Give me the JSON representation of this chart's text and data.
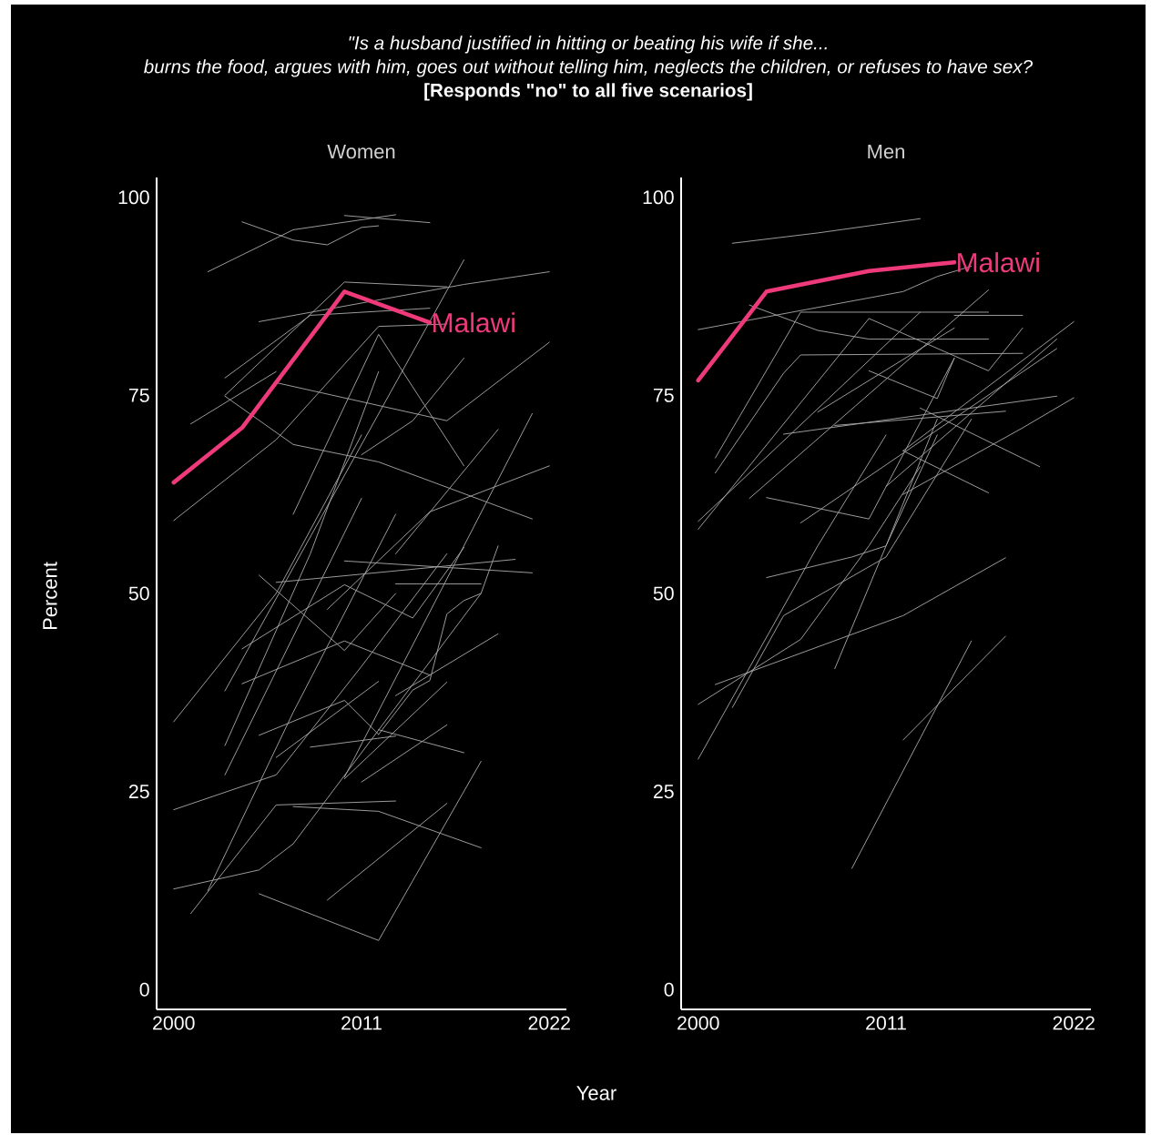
{
  "chart_data": [
    {
      "type": "line",
      "title": "Women",
      "xlabel": "Year",
      "ylabel": "Percent",
      "annotations": [
        "\"Is a husband justified in hitting or beating his wife if she...",
        "burns the food, argues with him, goes out without telling him, neglects the children, or refuses to have sex?",
        "[Responds \"no\" to all five scenarios]"
      ],
      "xlim": [
        1999,
        2023
      ],
      "ylim": [
        -2.5,
        102.5
      ],
      "xticks": [
        2000,
        2011,
        2022
      ],
      "yticks": [
        0,
        25,
        50,
        75,
        100
      ],
      "marker": "none",
      "line_style": "solid",
      "series": [
        {
          "color": "#a6a6a6",
          "x": [
            2002,
            2007,
            2013
          ],
          "values": [
            90.6,
            95.9,
            97.8
          ]
        },
        {
          "color": "#a6a6a6",
          "x": [
            2004,
            2007,
            2009,
            2011,
            2012
          ],
          "values": [
            96.9,
            94.6,
            94.0,
            96.2,
            96.4
          ]
        },
        {
          "color": "#a6a6a6",
          "x": [
            2010,
            2015
          ],
          "values": [
            97.7,
            96.8
          ]
        },
        {
          "color": "#a6a6a6",
          "x": [
            2003,
            2010,
            2016
          ],
          "values": [
            75,
            89.3,
            88.7
          ]
        },
        {
          "color": "#a6a6a6",
          "x": [
            2005,
            2017,
            2022
          ],
          "values": [
            84.3,
            89,
            90.6
          ]
        },
        {
          "color": "#a6a6a6",
          "x": [
            2003,
            2008,
            2015
          ],
          "values": [
            77.2,
            85.1,
            86
          ]
        },
        {
          "color": "#a6a6a6",
          "x": [
            2003,
            2007,
            2012,
            2021
          ],
          "values": [
            74.9,
            68.8,
            66.6,
            59.4
          ]
        },
        {
          "color": "#a6a6a6",
          "x": [
            2006,
            2016,
            2022
          ],
          "values": [
            76.6,
            71.8,
            81.7
          ]
        },
        {
          "color": "#a6a6a6",
          "x": [
            2000,
            2006,
            2012,
            2016
          ],
          "values": [
            59.2,
            69.4,
            83.7,
            84
          ]
        },
        {
          "color": "#a6a6a6",
          "x": [
            2001,
            2006
          ],
          "values": [
            71.4,
            78
          ]
        },
        {
          "color": "#a6a6a6",
          "x": [
            2007,
            2012,
            2017
          ],
          "values": [
            60,
            82.7,
            66.1
          ]
        },
        {
          "color": "#a6a6a6",
          "x": [
            2011,
            2014,
            2017
          ],
          "values": [
            67.5,
            71.8,
            79.7
          ]
        },
        {
          "color": "#a6a6a6",
          "x": [
            2003,
            2017
          ],
          "values": [
            37.7,
            92.1
          ]
        },
        {
          "color": "#a6a6a6",
          "x": [
            2009,
            2015,
            2022
          ],
          "values": [
            48,
            60.3,
            66.1
          ]
        },
        {
          "color": "#a6a6a6",
          "x": [
            2010,
            2021
          ],
          "values": [
            26.8,
            72.7
          ]
        },
        {
          "color": "#a6a6a6",
          "x": [
            2012,
            2014,
            2015,
            2016,
            2017,
            2018,
            2019
          ],
          "values": [
            32.2,
            37.8,
            39,
            47.4,
            49.1,
            50,
            56
          ]
        },
        {
          "color": "#a6a6a6",
          "x": [
            2013,
            2019
          ],
          "values": [
            55,
            70.7
          ]
        },
        {
          "color": "#a6a6a6",
          "x": [
            2000,
            2006,
            2011,
            2016
          ],
          "values": [
            22.7,
            27.1,
            40.8,
            55
          ]
        },
        {
          "color": "#a6a6a6",
          "x": [
            2000,
            2005,
            2007,
            2018
          ],
          "values": [
            12.7,
            15.1,
            18.4,
            50
          ]
        },
        {
          "color": "#a6a6a6",
          "x": [
            2001,
            2006,
            2013
          ],
          "values": [
            9.6,
            23.3,
            23.8
          ]
        },
        {
          "color": "#a6a6a6",
          "x": [
            2007,
            2012,
            2018
          ],
          "values": [
            23.1,
            22.5,
            17.9
          ]
        },
        {
          "color": "#a6a6a6",
          "x": [
            2005,
            2012,
            2018
          ],
          "values": [
            12.1,
            6.2,
            28.8
          ]
        },
        {
          "color": "#a6a6a6",
          "x": [
            2009,
            2016
          ],
          "values": [
            11.3,
            23.5
          ]
        },
        {
          "color": "#a6a6a6",
          "x": [
            2002,
            2007,
            2013
          ],
          "values": [
            12.5,
            35,
            60
          ]
        },
        {
          "color": "#a6a6a6",
          "x": [
            2010,
            2016
          ],
          "values": [
            26.6,
            38.8
          ]
        },
        {
          "color": "#a6a6a6",
          "x": [
            2011,
            2016
          ],
          "values": [
            26.2,
            33.4
          ]
        },
        {
          "color": "#a6a6a6",
          "x": [
            2008,
            2013
          ],
          "values": [
            30.6,
            32
          ]
        },
        {
          "color": "#a6a6a6",
          "x": [
            2012,
            2017
          ],
          "values": [
            32.8,
            29.9
          ]
        },
        {
          "color": "#a6a6a6",
          "x": [
            2005,
            2010,
            2012
          ],
          "values": [
            32.1,
            36.5,
            32.2
          ]
        },
        {
          "color": "#a6a6a6",
          "x": [
            2004,
            2010,
            2015
          ],
          "values": [
            38.6,
            44,
            39.7
          ]
        },
        {
          "color": "#a6a6a6",
          "x": [
            2005,
            2010,
            2013
          ],
          "values": [
            52.3,
            42.8,
            50
          ]
        },
        {
          "color": "#a6a6a6",
          "x": [
            2004,
            2010,
            2014,
            2017
          ],
          "values": [
            43,
            51.1,
            46.9,
            55.8
          ]
        },
        {
          "color": "#a6a6a6",
          "x": [
            2006,
            2020
          ],
          "values": [
            51.4,
            54.3
          ]
        },
        {
          "color": "#a6a6a6",
          "x": [
            2010,
            2021
          ],
          "values": [
            54.1,
            52.6
          ]
        },
        {
          "color": "#a6a6a6",
          "x": [
            2013,
            2018
          ],
          "values": [
            51.2,
            51.2
          ]
        },
        {
          "color": "#a6a6a6",
          "x": [
            2013,
            2019
          ],
          "values": [
            37.1,
            44.9
          ]
        },
        {
          "color": "#a6a6a6",
          "x": [
            2000,
            2006,
            2011
          ],
          "values": [
            33.8,
            50,
            70
          ]
        },
        {
          "color": "#a6a6a6",
          "x": [
            2003,
            2008,
            2012
          ],
          "values": [
            30.8,
            55,
            78
          ]
        },
        {
          "color": "#a6a6a6",
          "x": [
            2003,
            2011
          ],
          "values": [
            27.1,
            62
          ]
        },
        {
          "color": "#a6a6a6",
          "x": [
            2006,
            2012
          ],
          "values": [
            29.3,
            38.9
          ]
        },
        {
          "name": "Malawi",
          "color": "#ee3a7a",
          "x": [
            2000,
            2004,
            2010,
            2015
          ],
          "values": [
            64,
            70.9,
            88.1,
            84.2
          ]
        }
      ]
    },
    {
      "type": "line",
      "title": "Men",
      "xlim": [
        1999,
        2023
      ],
      "ylim": [
        -2.5,
        102.5
      ],
      "xticks": [
        2000,
        2011,
        2022
      ],
      "yticks": [
        0,
        25,
        50,
        75,
        100
      ],
      "marker": "none",
      "line_style": "solid",
      "series": [
        {
          "color": "#a6a6a6",
          "x": [
            2002,
            2007,
            2013
          ],
          "values": [
            94.2,
            95.5,
            97.3
          ]
        },
        {
          "color": "#a6a6a6",
          "x": [
            2000,
            2012,
            2014,
            2016
          ],
          "values": [
            83.3,
            88.1,
            90.0,
            91.3
          ]
        },
        {
          "color": "#a6a6a6",
          "x": [
            2003,
            2007,
            2010,
            2017
          ],
          "values": [
            86.4,
            83.2,
            82.1,
            82.1
          ]
        },
        {
          "color": "#a6a6a6",
          "x": [
            2015,
            2019
          ],
          "values": [
            85.1,
            85.1
          ]
        },
        {
          "color": "#a6a6a6",
          "x": [
            2001,
            2006,
            2017
          ],
          "values": [
            67.1,
            85.5,
            85.5
          ]
        },
        {
          "color": "#a6a6a6",
          "x": [
            2000,
            2010,
            2017,
            2019
          ],
          "values": [
            58.1,
            84.7,
            78.1,
            83.5
          ]
        },
        {
          "color": "#a6a6a6",
          "x": [
            2001,
            2005,
            2006,
            2019
          ],
          "values": [
            65.2,
            77.8,
            80.1,
            80.3
          ]
        },
        {
          "color": "#a6a6a6",
          "x": [
            2000,
            2013
          ],
          "values": [
            59.1,
            85.5
          ]
        },
        {
          "color": "#a6a6a6",
          "x": [
            2003,
            2017
          ],
          "values": [
            62,
            88.3
          ]
        },
        {
          "color": "#a6a6a6",
          "x": [
            2004,
            2010,
            2015
          ],
          "values": [
            62.1,
            59.4,
            79.7
          ]
        },
        {
          "color": "#a6a6a6",
          "x": [
            2007,
            2015
          ],
          "values": [
            72.9,
            83.5
          ]
        },
        {
          "color": "#a6a6a6",
          "x": [
            2005,
            2021
          ],
          "values": [
            70.1,
            74.9
          ]
        },
        {
          "color": "#a6a6a6",
          "x": [
            2008,
            2018
          ],
          "values": [
            71.2,
            73
          ]
        },
        {
          "color": "#a6a6a6",
          "x": [
            2012,
            2022
          ],
          "values": [
            68,
            84.3
          ]
        },
        {
          "color": "#a6a6a6",
          "x": [
            2010,
            2014,
            2015
          ],
          "values": [
            78.1,
            74.6,
            79.7
          ]
        },
        {
          "color": "#a6a6a6",
          "x": [
            2012,
            2017
          ],
          "values": [
            68,
            62.7
          ]
        },
        {
          "color": "#a6a6a6",
          "x": [
            2013,
            2020
          ],
          "values": [
            73.4,
            66
          ]
        },
        {
          "color": "#a6a6a6",
          "x": [
            2012,
            2019,
            2022
          ],
          "values": [
            62.5,
            70.9,
            74.7
          ]
        },
        {
          "color": "#a6a6a6",
          "x": [
            2006,
            2021
          ],
          "values": [
            58.9,
            80.9
          ]
        },
        {
          "color": "#a6a6a6",
          "x": [
            2011,
            2021
          ],
          "values": [
            63.5,
            82.1
          ]
        },
        {
          "color": "#a6a6a6",
          "x": [
            2004,
            2009,
            2011,
            2014
          ],
          "values": [
            52,
            54.6,
            56,
            72
          ]
        },
        {
          "color": "#a6a6a6",
          "x": [
            2001,
            2012,
            2018
          ],
          "values": [
            38.5,
            47.2,
            54.5
          ]
        },
        {
          "color": "#a6a6a6",
          "x": [
            2000,
            2006,
            2010,
            2013
          ],
          "values": [
            36,
            44.2,
            56,
            66
          ]
        },
        {
          "color": "#a6a6a6",
          "x": [
            2000,
            2007,
            2011
          ],
          "values": [
            29.1,
            56,
            70
          ]
        },
        {
          "color": "#a6a6a6",
          "x": [
            2002,
            2005,
            2011,
            2016
          ],
          "values": [
            35.6,
            47.2,
            54.6,
            72
          ]
        },
        {
          "color": "#a6a6a6",
          "x": [
            2008,
            2011,
            2014
          ],
          "values": [
            40.5,
            56,
            70
          ]
        },
        {
          "color": "#a6a6a6",
          "x": [
            2009,
            2016
          ],
          "values": [
            15.3,
            44
          ]
        },
        {
          "color": "#a6a6a6",
          "x": [
            2012,
            2018
          ],
          "values": [
            31.5,
            44.6
          ]
        },
        {
          "name": "Malawi",
          "color": "#ee3a7a",
          "x": [
            2000,
            2004,
            2010,
            2015
          ],
          "values": [
            76.9,
            88.1,
            90.7,
            91.8
          ]
        }
      ]
    }
  ]
}
